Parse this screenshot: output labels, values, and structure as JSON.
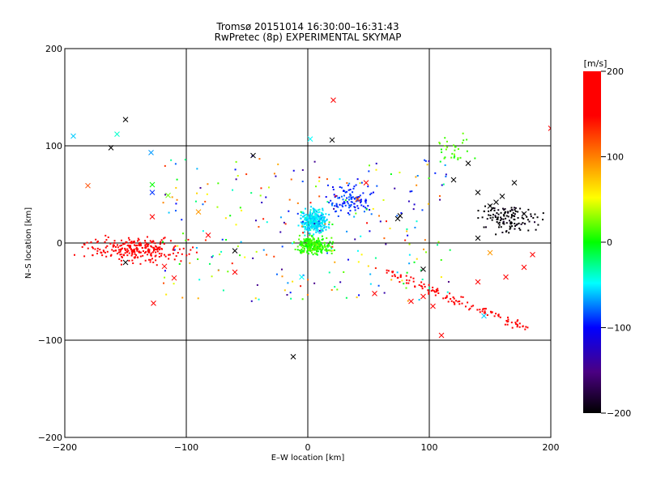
{
  "chart_data": {
    "type": "scatter",
    "title": "Tromsø 20151014 16:30:00–16:31:43",
    "subtitle": "RwPretec (8p) EXPERIMENTAL SKYMAP",
    "xlabel": "E–W location [km]",
    "ylabel": "N–S location [km]",
    "xlim": [
      -200,
      200
    ],
    "ylim": [
      -200,
      200
    ],
    "xticks": [
      -200,
      -100,
      0,
      100,
      200
    ],
    "yticks": [
      -200,
      -100,
      0,
      100,
      200
    ],
    "grid": true,
    "colorbar": {
      "label": "[m/s]",
      "range": [
        -200,
        200
      ],
      "ticks": [
        -200,
        -100,
        0,
        100,
        200
      ],
      "colormap": "black-purple-blue-cyan-green-yellow-red"
    },
    "markers": [
      "dot",
      "cross"
    ],
    "clusters": [
      {
        "name": "western-red-band",
        "x_range": [
          -195,
          -80
        ],
        "y_range": [
          -25,
          10
        ],
        "velocity": 200,
        "count": 260
      },
      {
        "name": "central-cyan",
        "x_range": [
          -10,
          20
        ],
        "y_range": [
          5,
          40
        ],
        "velocity": -55,
        "count": 320
      },
      {
        "name": "central-green",
        "x_range": [
          -15,
          25
        ],
        "y_range": [
          -15,
          10
        ],
        "velocity": 10,
        "count": 260
      },
      {
        "name": "north-central-blue",
        "x_range": [
          10,
          60
        ],
        "y_range": [
          20,
          65
        ],
        "velocity": -90,
        "count": 110
      },
      {
        "name": "eastern-black",
        "x_range": [
          130,
          200
        ],
        "y_range": [
          5,
          45
        ],
        "velocity": -200,
        "count": 130
      },
      {
        "name": "southeast-red-band",
        "x_range": [
          65,
          185
        ],
        "y_range": [
          -95,
          -30
        ],
        "velocity": 200,
        "count": 120
      },
      {
        "name": "northeast-green",
        "x_range": [
          100,
          140
        ],
        "y_range": [
          80,
          115
        ],
        "velocity": 15,
        "count": 30
      },
      {
        "name": "scattered-mixed",
        "x_range": [
          -120,
          120
        ],
        "y_range": [
          -60,
          90
        ],
        "velocity": 0,
        "count": 260
      }
    ],
    "crosses": [
      {
        "x": -150,
        "y": 127,
        "v": -200
      },
      {
        "x": -162,
        "y": 98,
        "v": -200
      },
      {
        "x": -193,
        "y": 110,
        "v": -60
      },
      {
        "x": -157,
        "y": 112,
        "v": -40
      },
      {
        "x": -129,
        "y": 93,
        "v": -70
      },
      {
        "x": -181,
        "y": 59,
        "v": 120
      },
      {
        "x": -128,
        "y": 60,
        "v": 0
      },
      {
        "x": -128,
        "y": 52,
        "v": -90
      },
      {
        "x": -115,
        "y": 49,
        "v": 20
      },
      {
        "x": -128,
        "y": 27,
        "v": 200
      },
      {
        "x": -90,
        "y": 32,
        "v": 90
      },
      {
        "x": -150,
        "y": -20,
        "v": -200
      },
      {
        "x": -127,
        "y": -62,
        "v": 200
      },
      {
        "x": -118,
        "y": -24,
        "v": 200
      },
      {
        "x": -110,
        "y": -36,
        "v": 200
      },
      {
        "x": -45,
        "y": 90,
        "v": -200
      },
      {
        "x": 2,
        "y": 107,
        "v": -50
      },
      {
        "x": 20,
        "y": 106,
        "v": -200
      },
      {
        "x": 21,
        "y": 147,
        "v": 200
      },
      {
        "x": 41,
        "y": 45,
        "v": 120
      },
      {
        "x": 48,
        "y": 62,
        "v": 200
      },
      {
        "x": 74,
        "y": 25,
        "v": -200
      },
      {
        "x": 76,
        "y": 28,
        "v": -200
      },
      {
        "x": 95,
        "y": -27,
        "v": -200
      },
      {
        "x": 95,
        "y": -55,
        "v": 200
      },
      {
        "x": 85,
        "y": -60,
        "v": 200
      },
      {
        "x": 103,
        "y": -65,
        "v": 200
      },
      {
        "x": 110,
        "y": -95,
        "v": 200
      },
      {
        "x": 120,
        "y": 65,
        "v": -200
      },
      {
        "x": 132,
        "y": 82,
        "v": -200
      },
      {
        "x": 140,
        "y": 52,
        "v": -200
      },
      {
        "x": 150,
        "y": 38,
        "v": -200
      },
      {
        "x": 155,
        "y": 42,
        "v": -200
      },
      {
        "x": 160,
        "y": 48,
        "v": -200
      },
      {
        "x": 170,
        "y": 62,
        "v": -200
      },
      {
        "x": 200,
        "y": 118,
        "v": 200
      },
      {
        "x": 140,
        "y": 5,
        "v": -200
      },
      {
        "x": 150,
        "y": -10,
        "v": 90
      },
      {
        "x": 178,
        "y": 30,
        "v": -200
      },
      {
        "x": 185,
        "y": -12,
        "v": 200
      },
      {
        "x": 178,
        "y": -25,
        "v": 200
      },
      {
        "x": 163,
        "y": -35,
        "v": 200
      },
      {
        "x": 140,
        "y": -40,
        "v": 200
      },
      {
        "x": 145,
        "y": -75,
        "v": -60
      },
      {
        "x": -12,
        "y": -117,
        "v": -200
      },
      {
        "x": -60,
        "y": -8,
        "v": -200
      },
      {
        "x": -82,
        "y": 8,
        "v": 200
      },
      {
        "x": -60,
        "y": -30,
        "v": 200
      },
      {
        "x": -5,
        "y": -35,
        "v": -50
      },
      {
        "x": 55,
        "y": -52,
        "v": 200
      }
    ]
  }
}
